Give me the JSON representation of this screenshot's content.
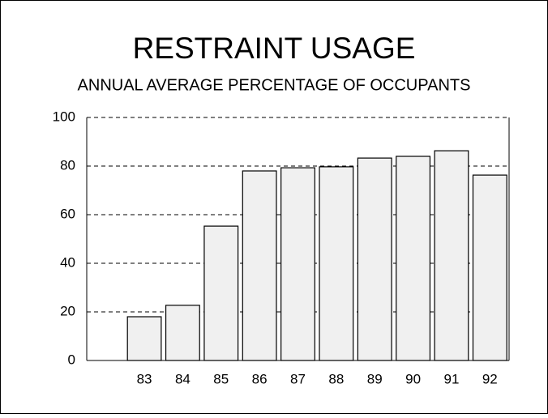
{
  "chart_data": {
    "type": "bar",
    "title": "RESTRAINT USAGE",
    "subtitle": "ANNUAL AVERAGE PERCENTAGE OF OCCUPANTS",
    "categories": [
      null,
      "83",
      "84",
      "85",
      "86",
      "87",
      "88",
      "89",
      "90",
      "91",
      "92"
    ],
    "values": [
      null,
      18,
      22.7,
      55.3,
      78,
      79.3,
      79.7,
      83.3,
      84,
      86.3,
      76.3
    ],
    "color": "#f0f0f0",
    "ylim": [
      0,
      100
    ],
    "yticks": [
      0,
      20,
      40,
      60,
      80,
      100
    ],
    "grid": true
  }
}
